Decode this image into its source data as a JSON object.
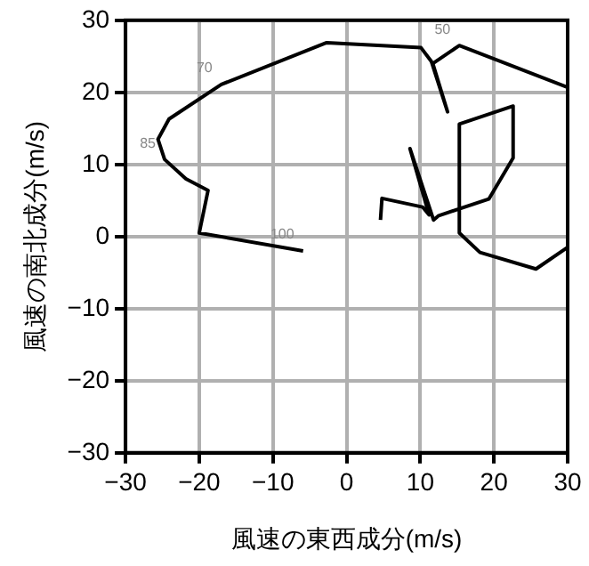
{
  "chart_data": {
    "type": "line",
    "xlabel": "風速の東西成分(m/s)",
    "ylabel": "風速の南北成分(m/s)",
    "x": [
      -5.9,
      -20.0,
      -18.8,
      -21.8,
      -24.7,
      -25.6,
      -24.1,
      -17.0,
      -2.7,
      10.1,
      11.5,
      13.7,
      11.7,
      15.3,
      30,
      null,
      30,
      25.7,
      18.1,
      15.3,
      15.3,
      22.6,
      22.6,
      19.3,
      12.5,
      11.8,
      8.6,
      11.2,
      10.3,
      4.8,
      4.6
    ],
    "series": [
      {
        "color": "#000000",
        "values": [
          -2.0,
          0.5,
          6.4,
          8.0,
          10.7,
          13.5,
          16.3,
          21.1,
          26.9,
          26.2,
          24.3,
          17.3,
          24.0,
          26.5,
          20.7,
          null,
          -1.5,
          -4.5,
          -2.2,
          0.5,
          15.6,
          18.1,
          10.9,
          5.2,
          2.9,
          2.3,
          12.2,
          3.0,
          4.1,
          5.3,
          2.3
        ]
      }
    ],
    "xlim": [
      -30,
      30
    ],
    "ylim": [
      -30,
      30
    ],
    "xticks": [
      -30,
      -20,
      -10,
      0,
      10,
      20,
      30
    ],
    "yticks": [
      -30,
      -20,
      -10,
      0,
      10,
      20,
      30
    ],
    "grid": true,
    "legend": false,
    "marker": "none",
    "line_style": "solid",
    "annotations": [
      {
        "text": "70",
        "x": -17.0,
        "y": 21.1
      },
      {
        "text": "85",
        "x": -24.7,
        "y": 10.7
      },
      {
        "text": "100",
        "x": -5.9,
        "y": -2.0
      },
      {
        "text": "50",
        "x": 15.3,
        "y": 26.5
      }
    ]
  }
}
